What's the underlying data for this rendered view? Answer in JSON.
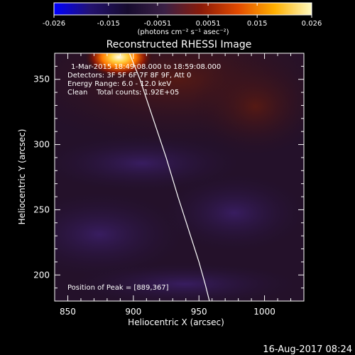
{
  "colorbar": {
    "ticks": [
      "-0.026",
      "-0.015",
      "-0.0051",
      "0.0051",
      "0.015",
      "0.026"
    ],
    "unit_label": "(photons cm⁻² s⁻¹ asec⁻²)",
    "range": [
      -0.026,
      0.026
    ],
    "colors": [
      "#0000ff",
      "#23126e",
      "#160b2e",
      "#3a2045",
      "#8a1a08",
      "#e24a00",
      "#ffb000",
      "#fffac0"
    ]
  },
  "annotations": {
    "time_range": "1-Mar-2015 18:49:08.000 to 18:59:08.000",
    "detectors": "Detectors: 3F 5F 6F 7F 8F 9F, Att 0",
    "energy": "Energy Range: 6.0 - 12.0 keV",
    "clean": "Clean    Total counts: 1.92E+05",
    "peak": "Position of Peak = [889,367]"
  },
  "footer": {
    "date": "16-Aug-2017 08:24"
  },
  "chart_data": {
    "type": "heatmap",
    "title": "Reconstructed RHESSI Image",
    "xlabel": "Heliocentric X (arcsec)",
    "ylabel": "Heliocentric Y (arcsec)",
    "xlim": [
      840,
      1030
    ],
    "ylim": [
      180,
      370
    ],
    "x_ticks": [
      850,
      900,
      950,
      1000
    ],
    "y_ticks": [
      200,
      250,
      300,
      350
    ],
    "x_tick_labels": [
      "850",
      "900",
      "950",
      "1000"
    ],
    "y_tick_labels": [
      "200",
      "250",
      "300",
      "350"
    ],
    "peak": {
      "x": 889,
      "y": 367,
      "value": 0.026
    },
    "limb": [
      [
        897,
        370
      ],
      [
        905,
        350
      ],
      [
        915,
        320
      ],
      [
        925,
        290
      ],
      [
        934,
        260
      ],
      [
        942,
        235
      ],
      [
        950,
        210
      ],
      [
        955,
        192
      ],
      [
        958,
        180
      ]
    ],
    "grid": false
  }
}
